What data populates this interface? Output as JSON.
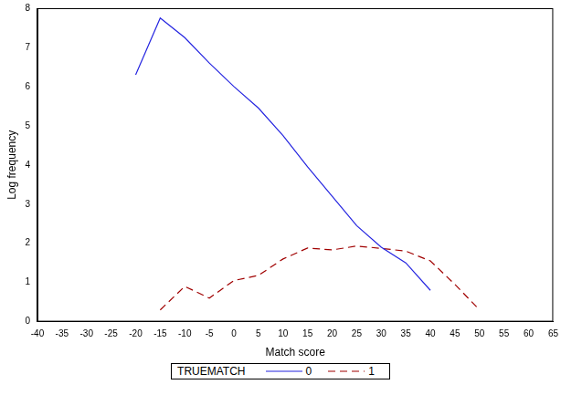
{
  "chart_data": {
    "type": "line",
    "x_label": "Match score",
    "y_label": "Log frequency",
    "legend_title": "TRUEMATCH",
    "legend": "bottom",
    "grid": false,
    "x": [
      -20,
      -15,
      -10,
      -5,
      0,
      5,
      10,
      15,
      20,
      25,
      30,
      35,
      40,
      45,
      50
    ],
    "series": [
      {
        "name": "0",
        "color": "#2525e0",
        "line_style": "solid",
        "values": [
          6.3,
          7.75,
          7.25,
          6.6,
          6.0,
          5.45,
          4.75,
          3.95,
          3.2,
          2.45,
          1.9,
          1.5,
          0.8,
          null,
          null
        ]
      },
      {
        "name": "1",
        "color": "#a00000",
        "line_style": "dashed",
        "values": [
          null,
          0.3,
          0.9,
          0.6,
          1.05,
          1.18,
          1.6,
          1.88,
          1.83,
          1.93,
          1.87,
          1.8,
          1.55,
          0.95,
          0.3
        ]
      }
    ],
    "xlim": [
      -40,
      65
    ],
    "xticks": [
      -40,
      -35,
      -30,
      -25,
      -20,
      -15,
      -10,
      -5,
      0,
      5,
      10,
      15,
      20,
      25,
      30,
      35,
      40,
      45,
      50,
      55,
      60,
      65
    ],
    "ylim": [
      0,
      8
    ],
    "yticks": [
      0,
      1,
      2,
      3,
      4,
      5,
      6,
      7,
      8
    ]
  }
}
